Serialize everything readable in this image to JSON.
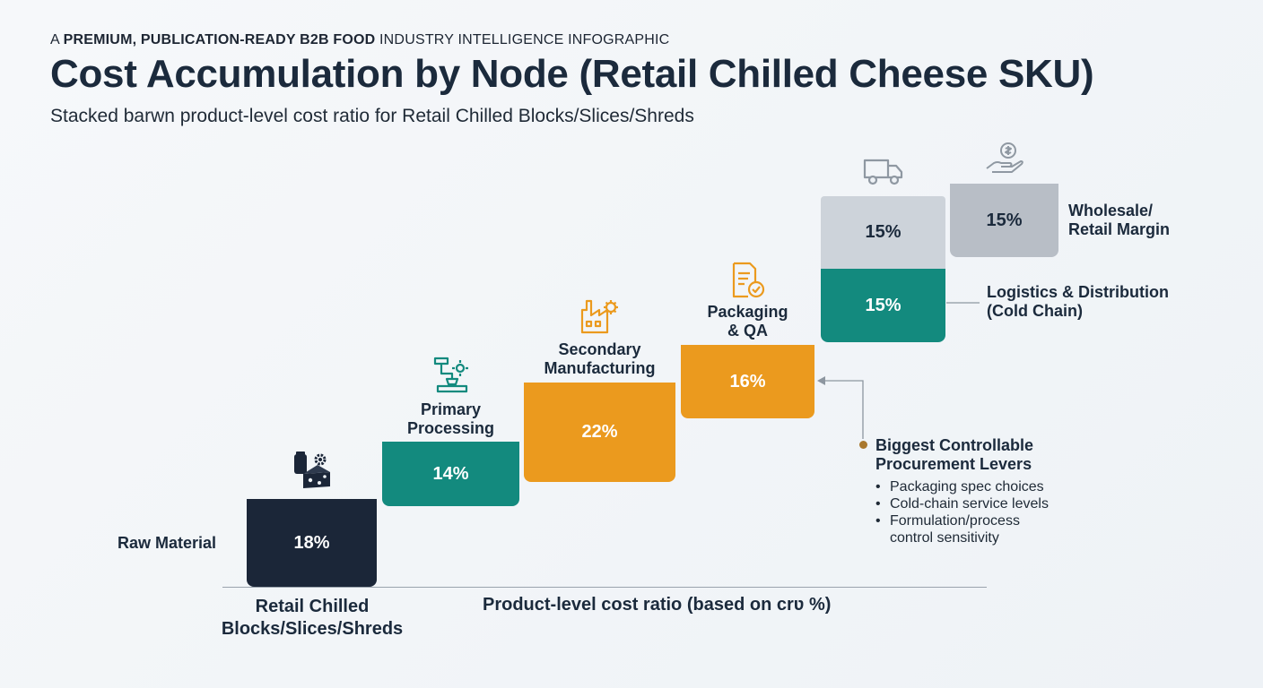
{
  "header": {
    "kicker_prefix": "A ",
    "kicker_bold": "PREMIUM, PUBLICATION-READY B2B FOOD",
    "kicker_rest": " INDUSTRY INTELLIGENCE INFOGRAPHIC"
  },
  "chart_data": {
    "type": "bar",
    "title": "Cost Accumulation by Node (Retail Chilled Cheese SKU)",
    "subtitle": "Stacked barwn product-level cost ratio for Retail Chilled Blocks/Slices/Shreds",
    "category": "Retail Chilled Blocks/Slices/Shreds",
    "xlabel": "Product-level cost ratio (based on crʋ %)",
    "unit": "%",
    "series": [
      {
        "name": "Raw Material",
        "value": 18,
        "label": "18%",
        "color": "#1b2638"
      },
      {
        "name": "Primary Processing",
        "value": 14,
        "label": "14%",
        "color": "#138a7e"
      },
      {
        "name": "Secondary Manufacturing",
        "value": 22,
        "label": "22%",
        "color": "#eb9a1e"
      },
      {
        "name": "Packaging & QA",
        "value": 16,
        "label": "16%",
        "color": "#eb9a1e"
      },
      {
        "name": "Logistics & Distribution (Cold Chain)",
        "value": 15,
        "label": "15%",
        "color": "#138a7e"
      },
      {
        "name": "",
        "value": 15,
        "label": "15%",
        "color": "#cdd3da"
      },
      {
        "name": "Wholesale/ Retail Margin",
        "value": 15,
        "label": "15%",
        "color": "#b8bec6"
      }
    ]
  },
  "labels": {
    "raw_material": "Raw Material",
    "primary_1": "Primary",
    "primary_2": "Processing",
    "secondary_1": "Secondary",
    "secondary_2": "Manufacturing",
    "packaging_1": "Packaging",
    "packaging_2": "& QA",
    "logistics_1": "Logistics & Distribution",
    "logistics_2": "(Cold Chain)",
    "margin_1": "Wholesale/",
    "margin_2": "Retail Margin",
    "cat_1": "Retail Chilled",
    "cat_2": "Blocks/Slices/Shreds"
  },
  "levers": {
    "title_1": "Biggest Controllable",
    "title_2": "Procurement Levers",
    "items": [
      "Packaging spec choices",
      "Cold-chain service levels",
      "Formulation/process",
      "control sensitivity"
    ]
  },
  "icons": [
    "cheese-gear-icon",
    "processing-machine-icon",
    "factory-gear-icon",
    "document-check-icon",
    "truck-icon",
    "hand-money-icon"
  ]
}
